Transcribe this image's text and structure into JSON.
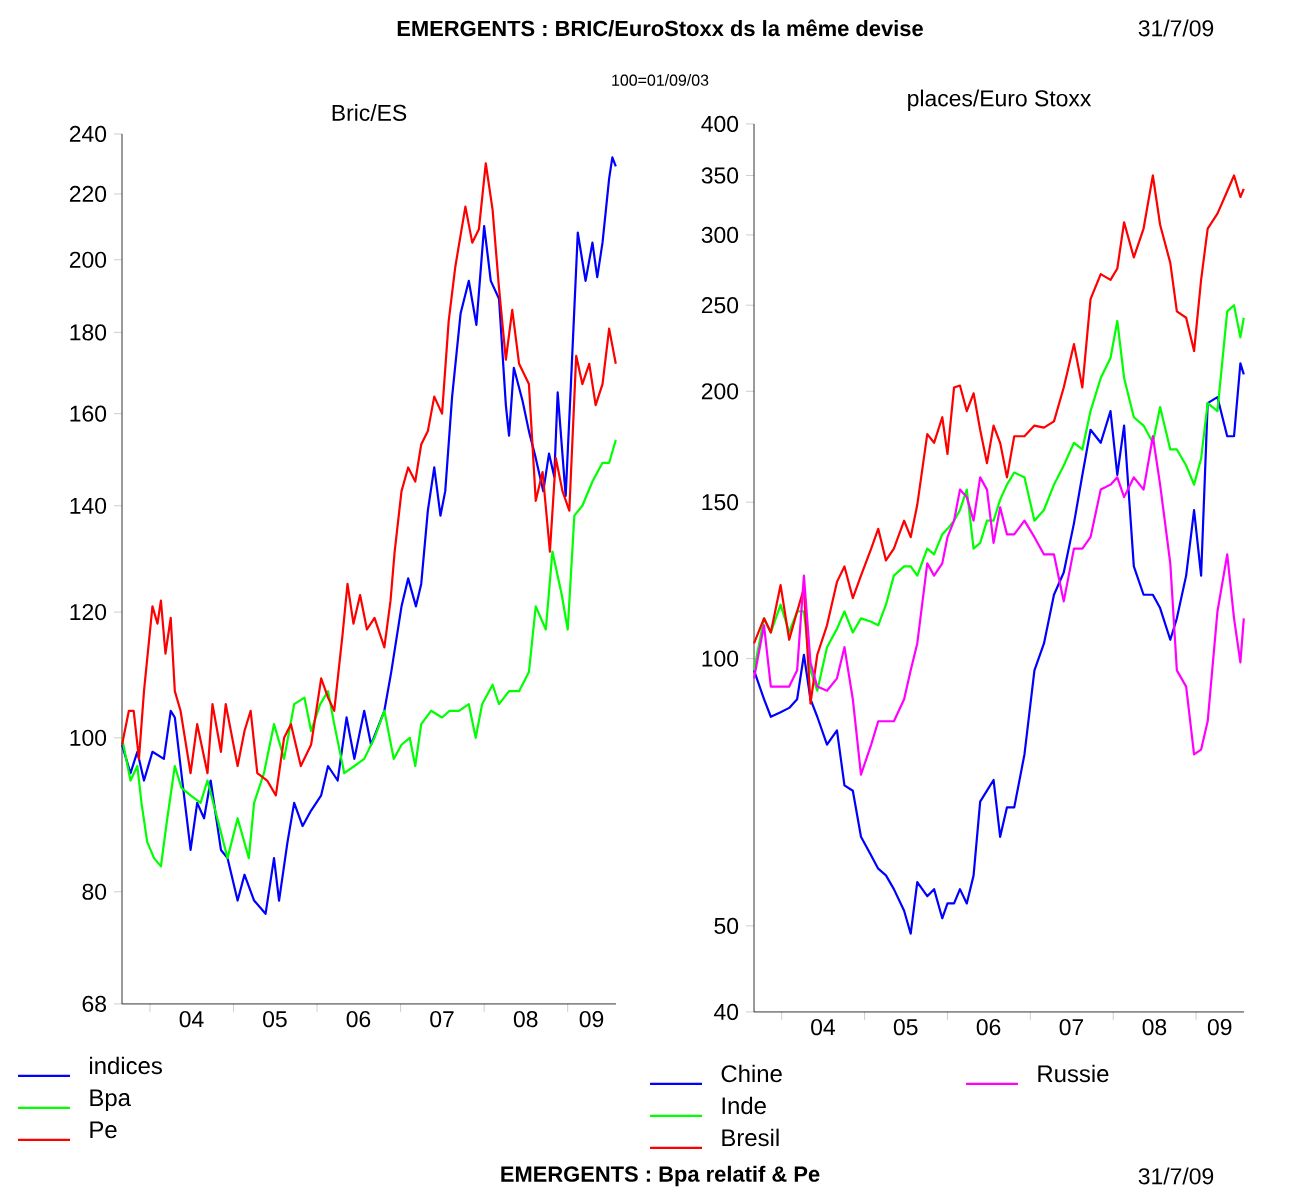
{
  "chart_data": [
    {
      "type": "line",
      "title": "Bric/ES",
      "log": "y",
      "legend": "bottom",
      "annotations": [
        "EMERGENTS : BRIC/EuroStoxx ds la même devise",
        "31/7/09",
        "100=01/09/03",
        "EMERGENTS : Bpa relatif & Pe",
        "31/7/09"
      ],
      "xlim": [
        "2003-09-01",
        "2009-07-31"
      ],
      "ylim": [
        68,
        240
      ],
      "xticks": [
        {
          "value": "2004-01-01",
          "label": null
        },
        {
          "value": "2005-01-01",
          "label": null
        },
        {
          "value": "2006-01-01",
          "label": null
        },
        {
          "value": "2007-01-01",
          "label": null
        },
        {
          "value": "2008-01-01",
          "label": null
        },
        {
          "value": "2009-01-01",
          "label": null
        },
        {
          "value": "2004-07-01",
          "label": "04"
        },
        {
          "value": "2005-07-01",
          "label": "05"
        },
        {
          "value": "2006-07-01",
          "label": "06"
        },
        {
          "value": "2007-07-01",
          "label": "07"
        },
        {
          "value": "2008-07-01",
          "label": "08"
        },
        {
          "value": "2009-04-15",
          "label": "09"
        }
      ],
      "yticks": [
        68,
        80,
        100,
        120,
        140,
        160,
        180,
        200,
        220,
        240
      ],
      "series": [
        {
          "name": "indices",
          "color": "#0000ff",
          "x": [
            "2003-09-01",
            "2003-10-08",
            "2003-11-07",
            "2003-12-06",
            "2004-01-12",
            "2004-03-02",
            "2004-04-01",
            "2004-04-19",
            "2004-05-14",
            "2004-06-27",
            "2004-07-26",
            "2004-08-25",
            "2004-09-23",
            "2004-11-07",
            "2004-12-06",
            "2005-01-19",
            "2005-02-18",
            "2005-04-01",
            "2005-05-21",
            "2005-06-27",
            "2005-07-19",
            "2005-08-25",
            "2005-09-23",
            "2005-10-30",
            "2005-12-06",
            "2006-01-19",
            "2006-02-18",
            "2006-04-01",
            "2006-05-10",
            "2006-06-13",
            "2006-07-26",
            "2006-08-25",
            "2006-10-22",
            "2006-11-21",
            "2007-01-05",
            "2007-02-03",
            "2007-03-09",
            "2007-04-01",
            "2007-04-30",
            "2007-05-28",
            "2007-06-24",
            "2007-07-15",
            "2007-08-14",
            "2007-09-20",
            "2007-10-26",
            "2007-11-28",
            "2008-01-01",
            "2008-01-30",
            "2008-03-06",
            "2008-04-05",
            "2008-04-19",
            "2008-05-10",
            "2008-06-17",
            "2008-07-15",
            "2008-08-14",
            "2008-09-16",
            "2008-10-11",
            "2008-11-03",
            "2008-11-18",
            "2008-12-23",
            "2009-01-15",
            "2009-02-14",
            "2009-03-20",
            "2009-04-19",
            "2009-05-10",
            "2009-06-02",
            "2009-07-01",
            "2009-07-15",
            "2009-07-30"
          ],
          "values": [
            99,
            95,
            98,
            94,
            98,
            97,
            104,
            103,
            96,
            85,
            91,
            89,
            94,
            85,
            84,
            79,
            82,
            79,
            77.5,
            84,
            79,
            86,
            91,
            88,
            90,
            92,
            96,
            94,
            103,
            97,
            104,
            99,
            104,
            110,
            121,
            126,
            121,
            125,
            139,
            148,
            138,
            143,
            164,
            185,
            194,
            182,
            210,
            194,
            189,
            162,
            155,
            171,
            163,
            156,
            150,
            143,
            151,
            146,
            165,
            142,
            167,
            208,
            194,
            205,
            195,
            205,
            225,
            232,
            229
          ]
        },
        {
          "name": "Bpa",
          "color": "#00ff00",
          "x": [
            "2003-09-01",
            "2003-10-08",
            "2003-11-07",
            "2003-11-25",
            "2003-12-20",
            "2004-01-19",
            "2004-02-18",
            "2004-03-17",
            "2004-04-19",
            "2004-05-18",
            "2004-06-27",
            "2004-08-10",
            "2004-09-09",
            "2004-10-22",
            "2004-12-06",
            "2005-01-19",
            "2005-03-09",
            "2005-04-01",
            "2005-05-14",
            "2005-06-27",
            "2005-08-10",
            "2005-09-23",
            "2005-11-07",
            "2005-12-06",
            "2006-01-15",
            "2006-02-18",
            "2006-03-17",
            "2006-04-30",
            "2006-06-13",
            "2006-07-26",
            "2006-09-09",
            "2006-10-22",
            "2006-12-02",
            "2007-01-05",
            "2007-02-10",
            "2007-03-06",
            "2007-04-01",
            "2007-05-14",
            "2007-07-01",
            "2007-08-03",
            "2007-09-13",
            "2007-10-26",
            "2007-11-25",
            "2007-12-23",
            "2008-02-07",
            "2008-03-06",
            "2008-04-19",
            "2008-06-02",
            "2008-07-15",
            "2008-08-14",
            "2008-09-27",
            "2008-10-26",
            "2008-12-06",
            "2009-01-01",
            "2009-01-30",
            "2009-03-06",
            "2009-04-19",
            "2009-06-02",
            "2009-07-01",
            "2009-07-30"
          ],
          "values": [
            100,
            94,
            96,
            91,
            86,
            84,
            83,
            89,
            96,
            93,
            92,
            91,
            94,
            89,
            84,
            89,
            84,
            91,
            95,
            102,
            97,
            105,
            106,
            101,
            105,
            107,
            102,
            95,
            96,
            97,
            100,
            104,
            97,
            99,
            100,
            96,
            102,
            104,
            103,
            104,
            104,
            105,
            100,
            105,
            108,
            105,
            107,
            107,
            110,
            121,
            117,
            131,
            123,
            117,
            138,
            140,
            145,
            149,
            149,
            154
          ]
        },
        {
          "name": "Pe",
          "color": "#ff0000",
          "x": [
            "2003-09-01",
            "2003-10-01",
            "2003-10-22",
            "2003-11-14",
            "2003-12-06",
            "2004-01-12",
            "2004-02-03",
            "2004-02-18",
            "2004-03-09",
            "2004-04-01",
            "2004-04-19",
            "2004-05-14",
            "2004-06-27",
            "2004-07-26",
            "2004-09-09",
            "2004-10-01",
            "2004-11-07",
            "2004-11-28",
            "2005-01-19",
            "2005-02-18",
            "2005-03-17",
            "2005-04-15",
            "2005-05-28",
            "2005-07-05",
            "2005-08-10",
            "2005-09-09",
            "2005-10-22",
            "2005-12-06",
            "2006-01-19",
            "2006-02-18",
            "2006-03-17",
            "2006-04-22",
            "2006-05-14",
            "2006-06-09",
            "2006-07-08",
            "2006-08-07",
            "2006-09-09",
            "2006-10-22",
            "2006-11-18",
            "2006-12-06",
            "2007-01-05",
            "2007-02-03",
            "2007-03-06",
            "2007-04-01",
            "2007-04-30",
            "2007-05-28",
            "2007-07-01",
            "2007-07-30",
            "2007-08-28",
            "2007-10-11",
            "2007-11-10",
            "2007-12-09",
            "2008-01-08",
            "2008-02-07",
            "2008-03-06",
            "2008-04-05",
            "2008-05-03",
            "2008-06-02",
            "2008-07-15",
            "2008-08-14",
            "2008-09-13",
            "2008-10-15",
            "2008-11-10",
            "2008-12-09",
            "2009-01-08",
            "2009-02-07",
            "2009-03-06",
            "2009-04-05",
            "2009-05-03",
            "2009-06-02",
            "2009-07-01",
            "2009-07-30"
          ],
          "values": [
            99,
            104,
            104,
            97,
            107,
            121,
            118,
            122,
            113,
            119,
            107,
            104,
            95,
            102,
            95,
            105,
            98,
            105,
            96,
            101,
            104,
            95,
            94,
            92,
            100,
            102,
            96,
            99,
            109,
            106,
            104,
            116,
            125,
            118,
            123,
            117,
            119,
            114,
            122,
            131,
            143,
            148,
            145,
            153,
            156,
            164,
            160,
            183,
            198,
            216,
            205,
            209,
            230,
            215,
            192,
            173,
            186,
            172,
            167,
            141,
            147,
            131,
            150,
            143,
            139,
            174,
            167,
            172,
            162,
            167,
            181,
            172
          ]
        }
      ]
    },
    {
      "type": "line",
      "title": "places/Euro Stoxx",
      "log": "y",
      "legend": "bottom",
      "xlim": [
        "2003-09-01",
        "2009-07-31"
      ],
      "ylim": [
        40,
        400
      ],
      "xticks": [
        {
          "value": "2004-01-01",
          "label": null
        },
        {
          "value": "2005-01-01",
          "label": null
        },
        {
          "value": "2006-01-01",
          "label": null
        },
        {
          "value": "2007-01-01",
          "label": null
        },
        {
          "value": "2008-01-01",
          "label": null
        },
        {
          "value": "2009-01-01",
          "label": null
        },
        {
          "value": "2004-07-01",
          "label": "04"
        },
        {
          "value": "2005-07-01",
          "label": "05"
        },
        {
          "value": "2006-07-01",
          "label": "06"
        },
        {
          "value": "2007-07-01",
          "label": "07"
        },
        {
          "value": "2008-07-01",
          "label": "08"
        },
        {
          "value": "2009-04-15",
          "label": "09"
        }
      ],
      "yticks": [
        40,
        50,
        100,
        150,
        200,
        250,
        300,
        350,
        400
      ],
      "x": [
        "2003-09-01",
        "2003-10-15",
        "2003-11-14",
        "2003-12-27",
        "2004-02-03",
        "2004-03-09",
        "2004-04-08",
        "2004-05-07",
        "2004-06-06",
        "2004-07-19",
        "2004-09-01",
        "2004-10-04",
        "2004-11-10",
        "2004-12-16",
        "2005-01-30",
        "2005-03-02",
        "2005-04-05",
        "2005-05-10",
        "2005-06-24",
        "2005-07-23",
        "2005-08-21",
        "2005-10-04",
        "2005-11-03",
        "2005-12-09",
        "2006-01-01",
        "2006-01-30",
        "2006-02-25",
        "2006-03-27",
        "2006-04-26",
        "2006-05-25",
        "2006-06-24",
        "2006-07-23",
        "2006-08-21",
        "2006-09-20",
        "2006-10-22",
        "2006-12-06",
        "2007-01-19",
        "2007-03-02",
        "2007-04-15",
        "2007-05-28",
        "2007-07-12",
        "2007-08-18",
        "2007-09-23",
        "2007-11-07",
        "2007-12-20",
        "2008-01-19",
        "2008-02-18",
        "2008-04-01",
        "2008-05-14",
        "2008-06-24",
        "2008-07-26",
        "2008-09-09",
        "2008-10-08",
        "2008-11-18",
        "2008-12-23",
        "2009-01-23",
        "2009-02-21",
        "2009-04-05",
        "2009-05-18",
        "2009-06-17",
        "2009-07-15",
        "2009-07-30"
      ],
      "series": [
        {
          "name": "Chine",
          "color": "#0000ff",
          "values": [
            97,
            90,
            86,
            87,
            88,
            90,
            101,
            90,
            86,
            80,
            83,
            72,
            71,
            63,
            60,
            58,
            57,
            55,
            52,
            49,
            56,
            54,
            55,
            51,
            53,
            53,
            55,
            53,
            57,
            69,
            71,
            73,
            63,
            68,
            68,
            78,
            97,
            104,
            118,
            125,
            142,
            161,
            181,
            175,
            190,
            161,
            183,
            127,
            118,
            118,
            114,
            105,
            111,
            124,
            147,
            124,
            194,
            197,
            178,
            178,
            215,
            209
          ]
        },
        {
          "name": "Inde",
          "color": "#00ff00",
          "values": [
            97,
            111,
            107,
            115,
            107,
            113,
            113,
            97,
            92,
            103,
            108,
            113,
            107,
            111,
            110,
            109,
            115,
            124,
            127,
            127,
            124,
            133,
            131,
            138,
            140,
            143,
            147,
            155,
            133,
            135,
            143,
            143,
            151,
            157,
            162,
            160,
            143,
            147,
            157,
            165,
            175,
            172,
            190,
            207,
            218,
            240,
            207,
            187,
            183,
            175,
            192,
            172,
            172,
            165,
            157,
            168,
            194,
            190,
            246,
            250,
            230,
            242
          ]
        },
        {
          "name": "Bresil",
          "color": "#ff0000",
          "values": [
            104,
            111,
            107,
            121,
            105,
            113,
            120,
            89,
            101,
            109,
            122,
            127,
            117,
            124,
            133,
            140,
            129,
            133,
            143,
            137,
            149,
            179,
            175,
            187,
            170,
            202,
            203,
            190,
            199,
            181,
            166,
            183,
            175,
            160,
            178,
            178,
            183,
            182,
            185,
            202,
            226,
            202,
            254,
            271,
            267,
            275,
            310,
            283,
            305,
            350,
            308,
            279,
            246,
            242,
            222,
            267,
            305,
            317,
            336,
            350,
            331,
            338
          ]
        },
        {
          "name": "Russie",
          "color": "#ff00ff",
          "values": [
            95,
            109,
            93,
            93,
            93,
            97,
            124,
            99,
            93,
            92,
            95,
            103,
            90,
            74,
            80,
            85,
            85,
            85,
            90,
            97,
            104,
            128,
            124,
            128,
            137,
            143,
            155,
            152,
            143,
            160,
            155,
            135,
            148,
            138,
            138,
            143,
            137,
            131,
            131,
            116,
            133,
            133,
            137,
            155,
            157,
            160,
            152,
            160,
            155,
            178,
            157,
            128,
            97,
            93,
            78,
            79,
            85,
            113,
            131,
            111,
            99,
            111
          ]
        }
      ]
    }
  ]
}
